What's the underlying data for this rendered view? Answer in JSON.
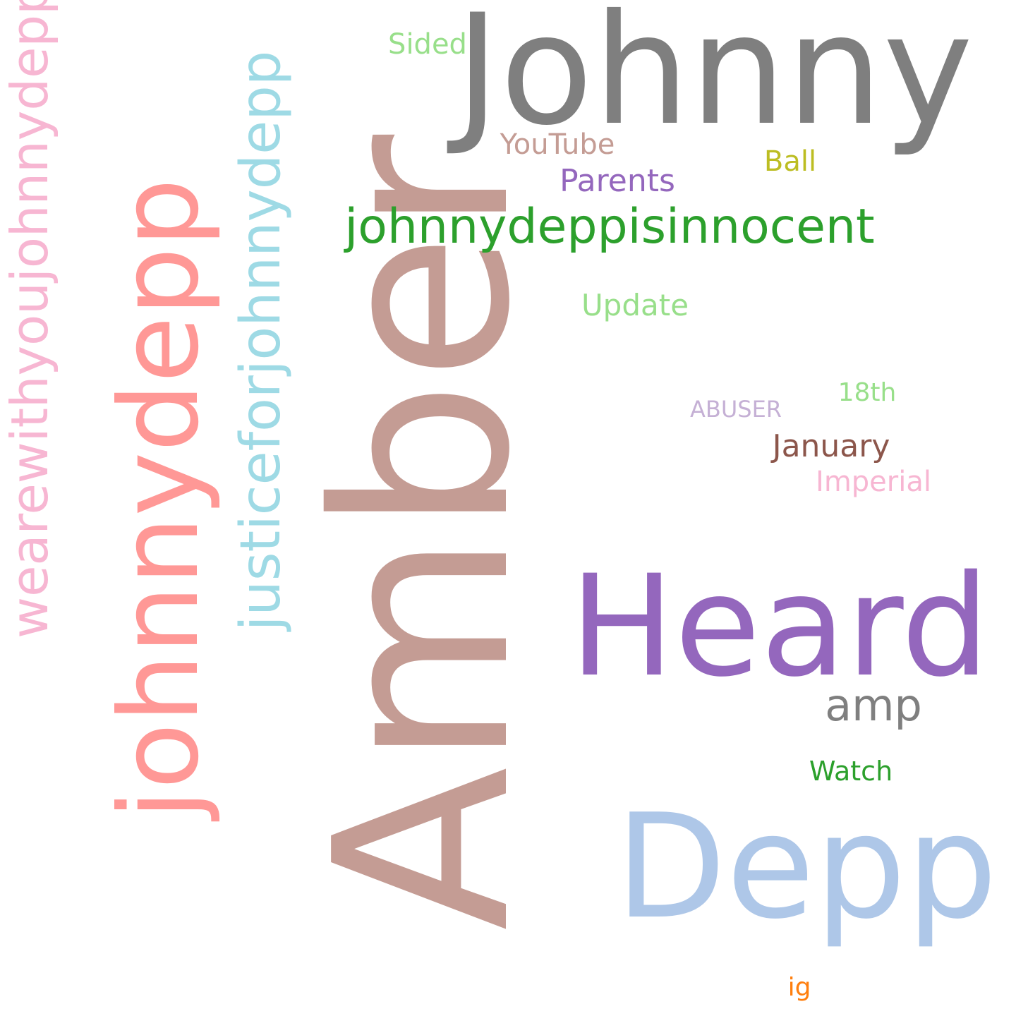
{
  "words": {
    "amber": {
      "text": "Amber",
      "color": "#c49c94"
    },
    "johnny": {
      "text": "Johnny",
      "color": "#7f7f7f"
    },
    "heard": {
      "text": "Heard",
      "color": "#9467bd"
    },
    "depp": {
      "text": "Depp",
      "color": "#aec7e8"
    },
    "johnnydepp": {
      "text": "johnnydepp",
      "color": "#ff9896"
    },
    "justice": {
      "text": "justiceforjohnnydepp",
      "color": "#9edae5"
    },
    "wearewith": {
      "text": "wearewithyoujohnnydepp",
      "color": "#f7b6d2"
    },
    "innocent": {
      "text": "johnnydeppisinnocent",
      "color": "#2ca02c"
    },
    "amp": {
      "text": "amp",
      "color": "#7f7f7f"
    },
    "sided": {
      "text": "Sided",
      "color": "#98df8a"
    },
    "youtube": {
      "text": "YouTube",
      "color": "#c49c94"
    },
    "ball": {
      "text": "Ball",
      "color": "#bcbd22"
    },
    "parents": {
      "text": "Parents",
      "color": "#9467bd"
    },
    "update": {
      "text": "Update",
      "color": "#98df8a"
    },
    "eighteenth": {
      "text": "18th",
      "color": "#98df8a"
    },
    "abuser": {
      "text": "ABUSER",
      "color": "#c5b0d5"
    },
    "january": {
      "text": "January",
      "color": "#8c564b"
    },
    "imperial": {
      "text": "Imperial",
      "color": "#f7b6d2"
    },
    "watch": {
      "text": "Watch",
      "color": "#2ca02c"
    },
    "ig": {
      "text": "ig",
      "color": "#ff7f0e"
    }
  }
}
